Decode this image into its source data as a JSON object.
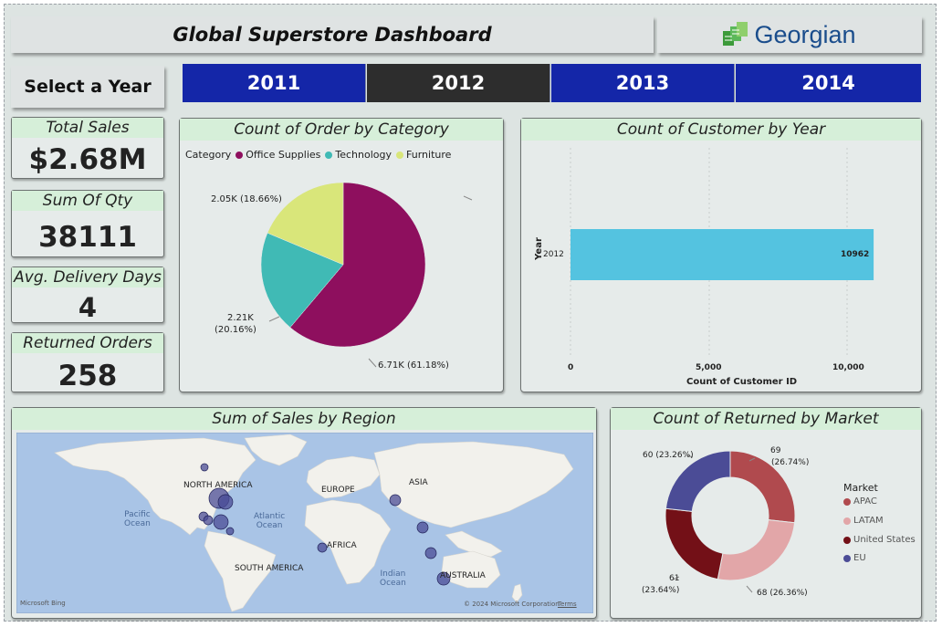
{
  "header": {
    "title": "Global Superstore  Dashboard",
    "logo_text": "Georgian"
  },
  "year_selector": {
    "label": "Select a Year",
    "years": [
      "2011",
      "2012",
      "2013",
      "2014"
    ],
    "selected": "2012",
    "active_color": "#2d2d2d",
    "inactive_color": "#1426a8"
  },
  "kpis": {
    "total_sales": {
      "label": "Total Sales",
      "value": "$2.68M"
    },
    "sum_qty": {
      "label": "Sum Of Qty",
      "value": "38111"
    },
    "avg_delivery": {
      "label": "Avg. Delivery Days",
      "value": "4"
    },
    "returned_orders": {
      "label": "Returned Orders",
      "value": "258"
    }
  },
  "category_panel": {
    "title": "Count of Order by Category",
    "legend_title": "Category",
    "legend": [
      {
        "name": "Office Supplies",
        "color": "#8e0f5e"
      },
      {
        "name": "Technology",
        "color": "#40bab5"
      },
      {
        "name": "Furniture",
        "color": "#d9e67a"
      }
    ],
    "labels": {
      "office": "6.71K (61.18%)",
      "tech_1": "2.21K",
      "tech_2": "(20.16%)",
      "furniture": "2.05K (18.66%)"
    }
  },
  "customer_panel": {
    "title": "Count of Customer by Year",
    "y_axis_title": "Year",
    "x_axis_title": "Count of Customer ID",
    "category_label": "2012",
    "value_label": "10962",
    "ticks": [
      "0",
      "5,000",
      "10,000"
    ],
    "bar_color": "#54c3e0"
  },
  "region_panel": {
    "title": "Sum of Sales by Region",
    "continents": {
      "north_america": "NORTH AMERICA",
      "europe": "EUROPE",
      "asia": "ASIA",
      "africa": "AFRICA",
      "south_america": "SOUTH AMERICA",
      "australia": "AUSTRALIA"
    },
    "oceans": {
      "pacific_1": "Pacific",
      "pacific_2": "Ocean",
      "atlantic_1": "Atlantic",
      "atlantic_2": "Ocean",
      "indian_1": "Indian",
      "indian_2": "Ocean"
    },
    "bing_logo": "Microsoft Bing",
    "copyright": "© 2024 Microsoft Corporation",
    "terms": "Terms"
  },
  "returned_panel": {
    "title": "Count of Returned by Market",
    "legend_title": "Market",
    "legend": [
      {
        "name": "APAC",
        "color": "#b04a4e"
      },
      {
        "name": "LATAM",
        "color": "#e2a6a8"
      },
      {
        "name": "United States",
        "color": "#731017"
      },
      {
        "name": "EU",
        "color": "#4b4c96"
      }
    ],
    "labels": {
      "apac_1": "69",
      "apac_2": "(26.74%)",
      "latam": "68 (26.36%)",
      "us_1": "61",
      "us_2": "(23.64%)",
      "eu": "60 (23.26%)"
    }
  },
  "chart_data": [
    {
      "type": "pie",
      "title": "Count of Order by Category",
      "categories": [
        "Office Supplies",
        "Technology",
        "Furniture"
      ],
      "values": [
        6710,
        2210,
        2050
      ],
      "percent": [
        61.18,
        20.16,
        18.66
      ]
    },
    {
      "type": "bar",
      "orientation": "horizontal",
      "title": "Count of Customer by Year",
      "categories": [
        "2012"
      ],
      "values": [
        10962
      ],
      "xlabel": "Count of Customer ID",
      "ylabel": "Year",
      "xlim": [
        0,
        11000
      ]
    },
    {
      "type": "pie",
      "variant": "donut",
      "title": "Count of Returned by Market",
      "categories": [
        "APAC",
        "LATAM",
        "United States",
        "EU"
      ],
      "values": [
        69,
        68,
        61,
        60
      ],
      "percent": [
        26.74,
        26.36,
        23.64,
        23.26
      ]
    }
  ]
}
